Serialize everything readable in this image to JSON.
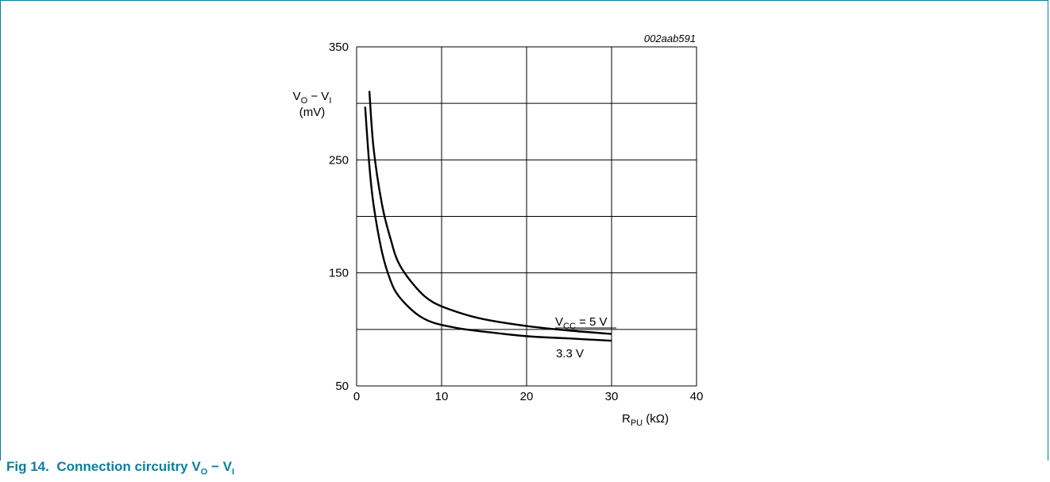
{
  "caption": {
    "label": "Fig 14.",
    "text": "Connection circuitry V",
    "sub1": "O",
    "dash": " − V",
    "sub2": "I"
  },
  "chart_data": {
    "type": "line",
    "figure_id": "002aab591",
    "xlabel": {
      "main": "R",
      "sub": "PU",
      "unit": " (kΩ)"
    },
    "ylabel": {
      "line1_main": "V",
      "line1_sub1": "O",
      "line1_dash": " − V",
      "line1_sub2": "I",
      "line2": "(mV)"
    },
    "xlim": [
      0,
      40
    ],
    "ylim": [
      50,
      350
    ],
    "x_ticks": [
      0,
      10,
      20,
      30,
      40
    ],
    "y_tick_labels": [
      50,
      150,
      250,
      350
    ],
    "y_grid": [
      50,
      100,
      150,
      200,
      250,
      300,
      350
    ],
    "grid": true,
    "series": [
      {
        "name": "VCC = 5 V",
        "label_main": "V",
        "label_sub": "CC",
        "label_rest": " = 5 V",
        "x": [
          1.5,
          2,
          3,
          4,
          5,
          7,
          9,
          12,
          15,
          20,
          25,
          30
        ],
        "y": [
          311,
          260,
          210,
          180,
          158,
          137,
          124,
          115,
          109,
          103,
          99,
          96
        ]
      },
      {
        "name": "3.3 V",
        "label_main": "3.3 V",
        "x": [
          1,
          1.5,
          2,
          3,
          4,
          5,
          7,
          9,
          12,
          15,
          20,
          25,
          30
        ],
        "y": [
          297,
          245,
          210,
          168,
          143,
          129,
          114,
          106,
          101,
          98,
          94,
          92,
          90
        ]
      }
    ]
  }
}
